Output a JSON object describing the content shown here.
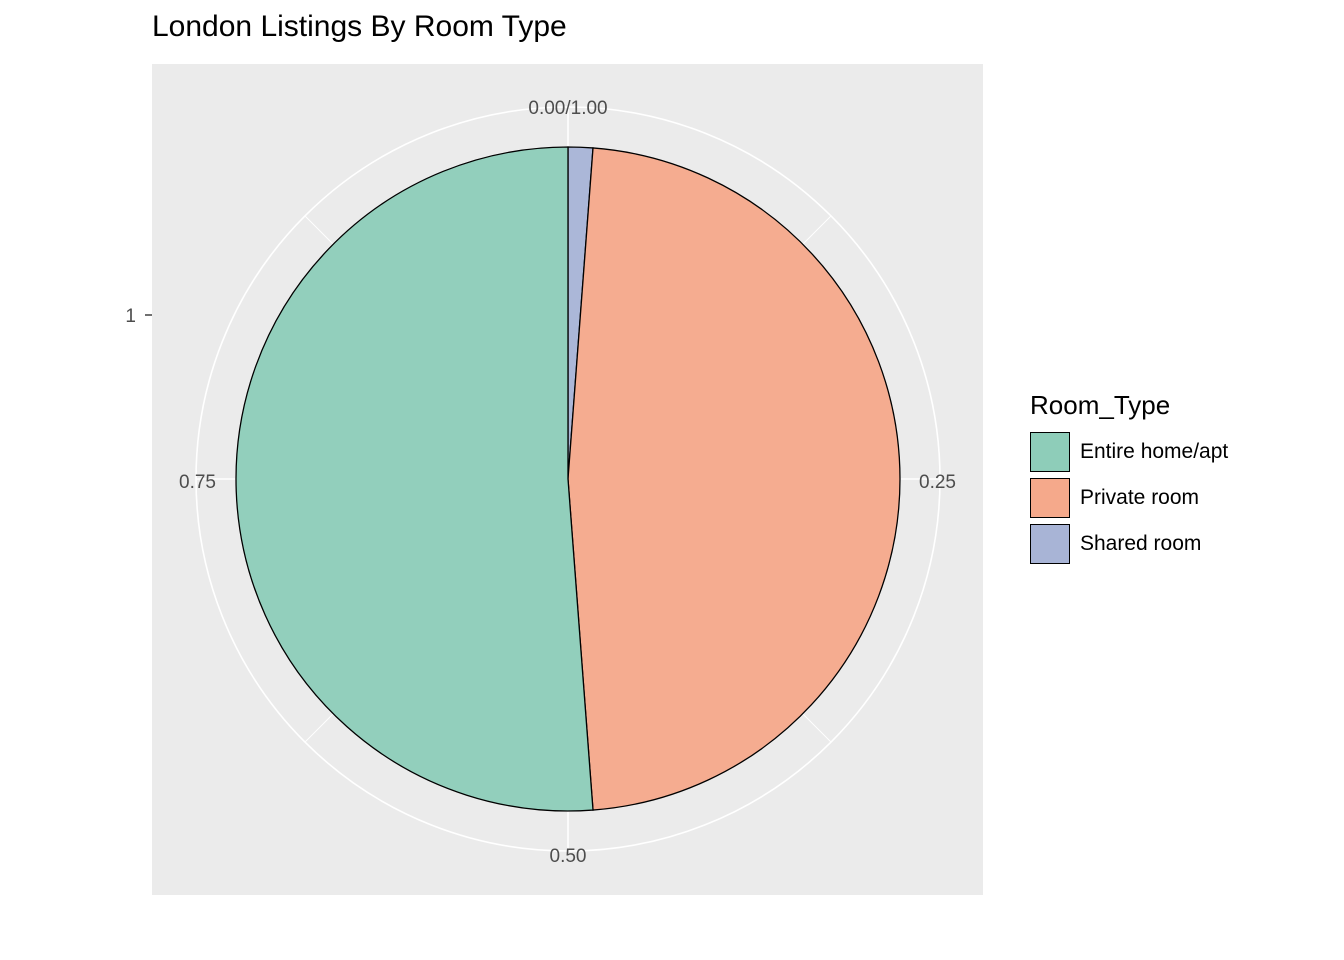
{
  "chart_data": {
    "type": "pie",
    "title": "London Listings By Room Type",
    "legend_title": "Room_Type",
    "legend_position": "right",
    "slices": [
      {
        "name": "Shared room",
        "value": 0.012,
        "color": "#a8b4d6"
      },
      {
        "name": "Private room",
        "value": 0.476,
        "color": "#f5a98b"
      },
      {
        "name": "Entire home/apt",
        "value": 0.512,
        "color": "#8ecdb9"
      }
    ],
    "legend_order": [
      "Entire home/apt",
      "Private room",
      "Shared room"
    ],
    "angular_ticks": [
      {
        "value": 0.0,
        "label": "0.00/1.00"
      },
      {
        "value": 0.25,
        "label": "0.25"
      },
      {
        "value": 0.5,
        "label": "0.50"
      },
      {
        "value": 0.75,
        "label": "0.75"
      }
    ],
    "radial_tick": {
      "value": 1,
      "label": "1"
    },
    "grid": true,
    "panel_background": "#ebebeb",
    "grid_color": "#ffffff"
  }
}
